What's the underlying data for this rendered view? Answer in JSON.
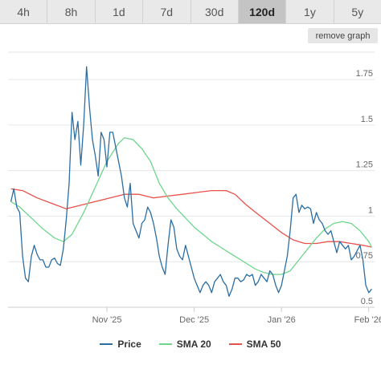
{
  "range_tabs": [
    {
      "label": "4h",
      "active": false
    },
    {
      "label": "8h",
      "active": false
    },
    {
      "label": "1d",
      "active": false
    },
    {
      "label": "7d",
      "active": false
    },
    {
      "label": "30d",
      "active": false
    },
    {
      "label": "120d",
      "active": true
    },
    {
      "label": "1y",
      "active": false
    },
    {
      "label": "5y",
      "active": false
    }
  ],
  "remove_graph_label": "remove graph",
  "chart_data": {
    "type": "line",
    "ylim": [
      0.5,
      1.9
    ],
    "y_ticks": [
      0.5,
      0.75,
      1,
      1.25,
      1.5,
      1.75
    ],
    "y_tick_labels": [
      "0.5",
      "0.75",
      "1",
      "1.25",
      "1.5",
      "1.75"
    ],
    "x_ticks": [
      34,
      64,
      94,
      124
    ],
    "x_tick_labels": [
      "Nov '25",
      "Dec '25",
      "Jan '26",
      "Feb '26"
    ],
    "grid": true,
    "legend_position": "bottom",
    "series": [
      {
        "name": "Price",
        "color": "#2b6ea3",
        "points": [
          [
            1,
            1.08
          ],
          [
            2,
            1.15
          ],
          [
            3,
            1.05
          ],
          [
            4,
            1.02
          ],
          [
            5,
            0.78
          ],
          [
            6,
            0.66
          ],
          [
            7,
            0.64
          ],
          [
            8,
            0.78
          ],
          [
            9,
            0.84
          ],
          [
            10,
            0.79
          ],
          [
            11,
            0.76
          ],
          [
            12,
            0.76
          ],
          [
            13,
            0.72
          ],
          [
            14,
            0.72
          ],
          [
            15,
            0.76
          ],
          [
            16,
            0.77
          ],
          [
            17,
            0.74
          ],
          [
            18,
            0.73
          ],
          [
            19,
            0.82
          ],
          [
            20,
            0.98
          ],
          [
            21,
            1.18
          ],
          [
            22,
            1.57
          ],
          [
            23,
            1.42
          ],
          [
            24,
            1.52
          ],
          [
            25,
            1.28
          ],
          [
            26,
            1.5
          ],
          [
            27,
            1.82
          ],
          [
            28,
            1.6
          ],
          [
            29,
            1.42
          ],
          [
            30,
            1.33
          ],
          [
            31,
            1.22
          ],
          [
            32,
            1.46
          ],
          [
            33,
            1.42
          ],
          [
            34,
            1.27
          ],
          [
            35,
            1.46
          ],
          [
            36,
            1.46
          ],
          [
            37,
            1.38
          ],
          [
            38,
            1.3
          ],
          [
            39,
            1.22
          ],
          [
            40,
            1.1
          ],
          [
            41,
            1.05
          ],
          [
            42,
            1.18
          ],
          [
            43,
            0.96
          ],
          [
            44,
            0.92
          ],
          [
            45,
            0.88
          ],
          [
            46,
            0.96
          ],
          [
            47,
            0.98
          ],
          [
            48,
            1.05
          ],
          [
            49,
            1.02
          ],
          [
            50,
            0.96
          ],
          [
            51,
            0.88
          ],
          [
            52,
            0.78
          ],
          [
            53,
            0.72
          ],
          [
            54,
            0.68
          ],
          [
            55,
            0.84
          ],
          [
            56,
            0.98
          ],
          [
            57,
            0.94
          ],
          [
            58,
            0.82
          ],
          [
            59,
            0.78
          ],
          [
            60,
            0.76
          ],
          [
            61,
            0.84
          ],
          [
            62,
            0.78
          ],
          [
            63,
            0.72
          ],
          [
            64,
            0.66
          ],
          [
            65,
            0.62
          ],
          [
            66,
            0.58
          ],
          [
            67,
            0.62
          ],
          [
            68,
            0.64
          ],
          [
            69,
            0.62
          ],
          [
            70,
            0.58
          ],
          [
            71,
            0.64
          ],
          [
            72,
            0.66
          ],
          [
            73,
            0.68
          ],
          [
            74,
            0.64
          ],
          [
            75,
            0.62
          ],
          [
            76,
            0.56
          ],
          [
            77,
            0.6
          ],
          [
            78,
            0.66
          ],
          [
            79,
            0.66
          ],
          [
            80,
            0.64
          ],
          [
            81,
            0.65
          ],
          [
            82,
            0.68
          ],
          [
            83,
            0.67
          ],
          [
            84,
            0.68
          ],
          [
            85,
            0.62
          ],
          [
            86,
            0.64
          ],
          [
            87,
            0.68
          ],
          [
            88,
            0.66
          ],
          [
            89,
            0.64
          ],
          [
            90,
            0.7
          ],
          [
            91,
            0.68
          ],
          [
            92,
            0.62
          ],
          [
            93,
            0.58
          ],
          [
            94,
            0.62
          ],
          [
            95,
            0.7
          ],
          [
            96,
            0.78
          ],
          [
            97,
            0.92
          ],
          [
            98,
            1.1
          ],
          [
            99,
            1.12
          ],
          [
            100,
            1.02
          ],
          [
            101,
            1.06
          ],
          [
            102,
            1.04
          ],
          [
            103,
            1.05
          ],
          [
            104,
            1.04
          ],
          [
            105,
            0.96
          ],
          [
            106,
            1.02
          ],
          [
            107,
            0.98
          ],
          [
            108,
            0.96
          ],
          [
            109,
            0.92
          ],
          [
            110,
            0.9
          ],
          [
            111,
            0.92
          ],
          [
            112,
            0.86
          ],
          [
            113,
            0.8
          ],
          [
            114,
            0.86
          ],
          [
            115,
            0.84
          ],
          [
            116,
            0.82
          ],
          [
            117,
            0.84
          ],
          [
            118,
            0.76
          ],
          [
            119,
            0.78
          ],
          [
            120,
            0.81
          ],
          [
            121,
            0.84
          ],
          [
            122,
            0.76
          ],
          [
            123,
            0.62
          ],
          [
            124,
            0.58
          ],
          [
            125,
            0.6
          ]
        ]
      },
      {
        "name": "SMA 20",
        "color": "#6ed68c",
        "points": [
          [
            1,
            1.08
          ],
          [
            4,
            1.05
          ],
          [
            8,
            0.99
          ],
          [
            12,
            0.93
          ],
          [
            16,
            0.88
          ],
          [
            19,
            0.86
          ],
          [
            22,
            0.9
          ],
          [
            26,
            1.02
          ],
          [
            30,
            1.16
          ],
          [
            34,
            1.3
          ],
          [
            38,
            1.4
          ],
          [
            40,
            1.43
          ],
          [
            43,
            1.42
          ],
          [
            46,
            1.37
          ],
          [
            49,
            1.3
          ],
          [
            52,
            1.18
          ],
          [
            55,
            1.1
          ],
          [
            58,
            1.04
          ],
          [
            61,
            0.99
          ],
          [
            64,
            0.94
          ],
          [
            67,
            0.9
          ],
          [
            70,
            0.86
          ],
          [
            73,
            0.83
          ],
          [
            76,
            0.8
          ],
          [
            79,
            0.77
          ],
          [
            82,
            0.74
          ],
          [
            85,
            0.71
          ],
          [
            88,
            0.69
          ],
          [
            91,
            0.68
          ],
          [
            94,
            0.68
          ],
          [
            97,
            0.7
          ],
          [
            100,
            0.76
          ],
          [
            103,
            0.82
          ],
          [
            106,
            0.88
          ],
          [
            109,
            0.93
          ],
          [
            112,
            0.96
          ],
          [
            115,
            0.97
          ],
          [
            118,
            0.96
          ],
          [
            121,
            0.92
          ],
          [
            124,
            0.86
          ],
          [
            125,
            0.83
          ]
        ]
      },
      {
        "name": "SMA 50",
        "color": "#e8504a",
        "points": [
          [
            1,
            1.15
          ],
          [
            5,
            1.14
          ],
          [
            10,
            1.1
          ],
          [
            15,
            1.07
          ],
          [
            20,
            1.04
          ],
          [
            25,
            1.06
          ],
          [
            30,
            1.08
          ],
          [
            35,
            1.1
          ],
          [
            40,
            1.12
          ],
          [
            45,
            1.12
          ],
          [
            50,
            1.1
          ],
          [
            55,
            1.11
          ],
          [
            60,
            1.12
          ],
          [
            65,
            1.13
          ],
          [
            70,
            1.14
          ],
          [
            75,
            1.14
          ],
          [
            78,
            1.12
          ],
          [
            82,
            1.06
          ],
          [
            86,
            1.01
          ],
          [
            90,
            0.96
          ],
          [
            94,
            0.91
          ],
          [
            98,
            0.87
          ],
          [
            102,
            0.85
          ],
          [
            106,
            0.85
          ],
          [
            110,
            0.86
          ],
          [
            114,
            0.86
          ],
          [
            118,
            0.85
          ],
          [
            122,
            0.84
          ],
          [
            125,
            0.83
          ]
        ]
      }
    ]
  }
}
